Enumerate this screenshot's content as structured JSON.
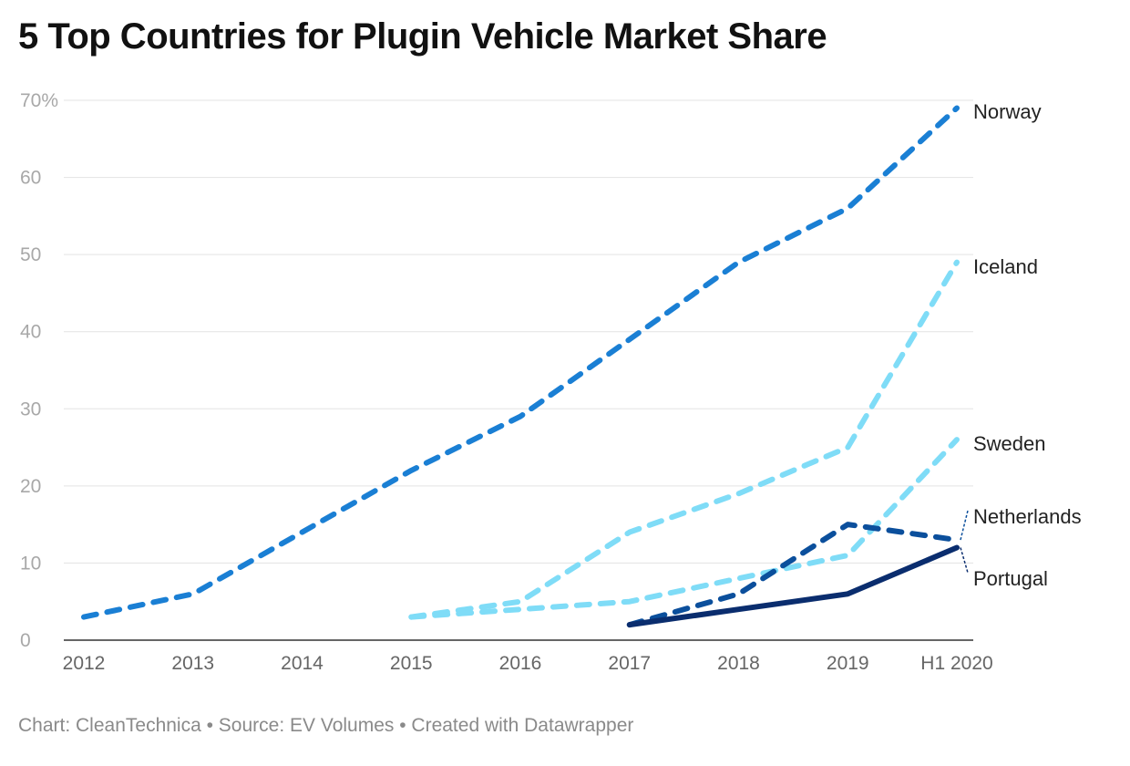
{
  "chart_data": {
    "type": "line",
    "title": "5 Top Countries for Plugin Vehicle Market Share",
    "categories": [
      "2012",
      "2013",
      "2014",
      "2015",
      "2016",
      "2017",
      "2018",
      "2019",
      "H1 2020"
    ],
    "y_ticks": [
      "0",
      "10",
      "20",
      "30",
      "40",
      "50",
      "60",
      "70%"
    ],
    "ylim": [
      0,
      70
    ],
    "y_unit": "%",
    "grid": true,
    "series": [
      {
        "name": "Norway",
        "values": [
          3,
          6,
          14,
          22,
          29,
          39,
          49,
          56,
          69
        ],
        "color": "#1a7fd4",
        "style": "dashed"
      },
      {
        "name": "Iceland",
        "values": [
          null,
          null,
          null,
          3,
          5,
          14,
          19,
          25,
          49
        ],
        "color": "#7fdcf7",
        "style": "dashed"
      },
      {
        "name": "Sweden",
        "values": [
          null,
          null,
          null,
          3,
          4,
          5,
          8,
          11,
          26
        ],
        "color": "#7fdcf7",
        "style": "dashed"
      },
      {
        "name": "Netherlands",
        "values": [
          null,
          null,
          null,
          null,
          null,
          2,
          6,
          15,
          13
        ],
        "color": "#0b4f9c",
        "style": "dashed"
      },
      {
        "name": "Portugal",
        "values": [
          null,
          null,
          null,
          null,
          null,
          2,
          4,
          6,
          12
        ],
        "color": "#0a2d6e",
        "style": "solid"
      }
    ]
  },
  "footer": "Chart: CleanTechnica • Source: EV Volumes • Created with Datawrapper"
}
